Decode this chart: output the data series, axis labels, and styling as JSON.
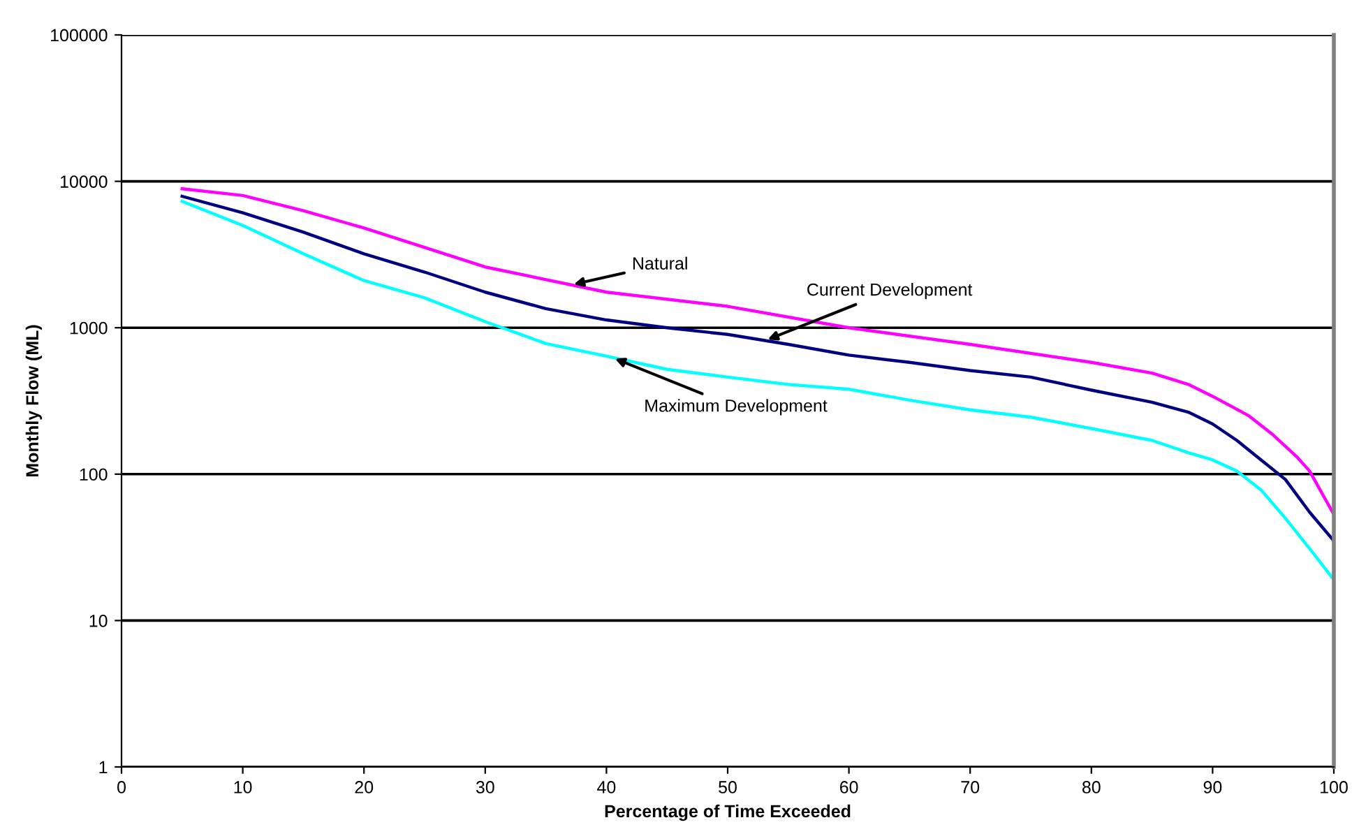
{
  "chart_data": {
    "type": "line",
    "xlabel": "Percentage of Time Exceeded",
    "ylabel": "Monthly Flow (ML)",
    "log": "y",
    "grid": "y",
    "marker": "none",
    "line_style": "solid",
    "xlim": [
      0,
      100
    ],
    "xticks": [
      0,
      10,
      20,
      30,
      40,
      50,
      60,
      70,
      80,
      90,
      100
    ],
    "ylim": [
      1,
      100000
    ],
    "yticks": [
      1,
      10,
      100,
      1000,
      10000,
      100000
    ],
    "series": [
      {
        "color": "#ff00ff",
        "x": [
          5,
          10,
          15,
          20,
          30,
          40,
          50,
          60,
          70,
          80,
          85,
          88,
          90,
          93,
          95,
          97,
          98,
          100
        ],
        "values": [
          8900,
          8000,
          6300,
          4800,
          2600,
          1750,
          1400,
          1000,
          770,
          580,
          490,
          410,
          340,
          250,
          185,
          130,
          105,
          53
        ]
      },
      {
        "color": "#000080",
        "x": [
          5,
          10,
          15,
          20,
          25,
          30,
          35,
          40,
          45,
          50,
          55,
          60,
          65,
          70,
          75,
          80,
          85,
          88,
          90,
          92,
          94,
          96,
          98,
          100
        ],
        "values": [
          7900,
          6100,
          4500,
          3200,
          2400,
          1750,
          1350,
          1130,
          1000,
          900,
          770,
          650,
          580,
          510,
          460,
          375,
          310,
          265,
          220,
          170,
          125,
          92,
          55,
          35
        ]
      },
      {
        "color": "#00ffff",
        "x": [
          5,
          10,
          15,
          20,
          25,
          30,
          35,
          40,
          45,
          50,
          55,
          60,
          65,
          70,
          75,
          80,
          85,
          88,
          90,
          92,
          94,
          96,
          98,
          100
        ],
        "values": [
          7300,
          5000,
          3200,
          2100,
          1600,
          1100,
          780,
          640,
          520,
          460,
          410,
          380,
          320,
          275,
          245,
          205,
          170,
          140,
          125,
          105,
          78,
          50,
          31,
          19
        ]
      }
    ],
    "annotations": [
      {
        "text": "Natural",
        "x": 37.3,
        "y": 1980
      },
      {
        "text": "Current Development",
        "x": 53.3,
        "y": 830
      },
      {
        "text": "Maximum Development",
        "x": 40.7,
        "y": 615
      }
    ]
  }
}
